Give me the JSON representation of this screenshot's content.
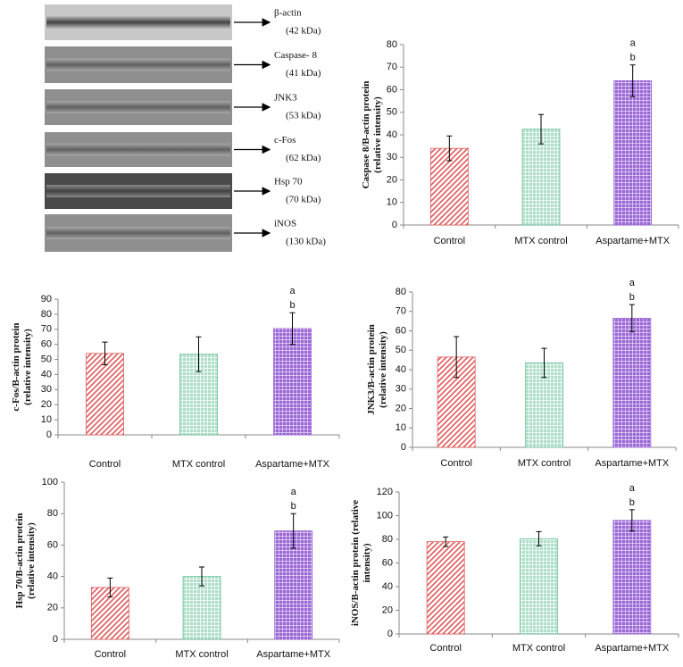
{
  "blot": [
    {
      "name": "β-actin",
      "size": "(42 kDa)"
    },
    {
      "name": "Caspase- 8",
      "size": "(41 kDa)"
    },
    {
      "name": "JNK3",
      "size": "(53 kDa)"
    },
    {
      "name": "c-Fos",
      "size": "(62 kDa)"
    },
    {
      "name": "Hsp 70",
      "size": "(70 kDa)"
    },
    {
      "name": "iNOS",
      "size": "(130 kDa)"
    }
  ],
  "chart_data": [
    {
      "type": "bar",
      "ylabel": [
        "Caspase 8/B-actin protein",
        "(relative intensity)"
      ],
      "categories": [
        "Control",
        "MTX control",
        "Aspartame+MTX"
      ],
      "values": [
        34,
        42.5,
        64
      ],
      "errors": [
        5.5,
        6.5,
        7
      ],
      "colors": [
        "#e05a5a",
        "#6cc29a",
        "#9a66d6"
      ],
      "ylim": [
        0,
        80
      ],
      "yticks": [
        0,
        10,
        20,
        30,
        40,
        50,
        60,
        70,
        80
      ],
      "annotations": [
        {
          "category": "Aspartame+MTX",
          "labels": [
            "a",
            "b"
          ]
        }
      ]
    },
    {
      "type": "bar",
      "ylabel": [
        "c-Fos/B-actin protein",
        "(relative intensity)"
      ],
      "categories": [
        "Control",
        "MTX control",
        "Aspartame+MTX"
      ],
      "values": [
        54,
        53.5,
        70.5
      ],
      "errors": [
        7.5,
        11.5,
        10.5
      ],
      "colors": [
        "#e05a5a",
        "#6cc29a",
        "#9a66d6"
      ],
      "ylim": [
        0,
        90
      ],
      "yticks": [
        0,
        10,
        20,
        30,
        40,
        50,
        60,
        70,
        80,
        90
      ],
      "annotations": [
        {
          "category": "Aspartame+MTX",
          "labels": [
            "a",
            "b"
          ]
        }
      ]
    },
    {
      "type": "bar",
      "ylabel": [
        "JNK3/B-actin protein",
        "(relative intensity)"
      ],
      "categories": [
        "Control",
        "MTX control",
        "Aspartame+MTX"
      ],
      "values": [
        46.5,
        43.5,
        66.5
      ],
      "errors": [
        10.5,
        7.5,
        7
      ],
      "colors": [
        "#e05a5a",
        "#6cc29a",
        "#9a66d6"
      ],
      "ylim": [
        0,
        80
      ],
      "yticks": [
        0,
        10,
        20,
        30,
        40,
        50,
        60,
        70,
        80
      ],
      "annotations": [
        {
          "category": "Aspartame+MTX",
          "labels": [
            "a",
            "b"
          ]
        }
      ]
    },
    {
      "type": "bar",
      "ylabel": [
        "Hsp 70/B-actin protein",
        "(relative intensity)"
      ],
      "categories": [
        "Control",
        "MTX control",
        "Aspartame+MTX"
      ],
      "values": [
        33,
        40,
        69
      ],
      "errors": [
        6,
        6,
        11
      ],
      "colors": [
        "#e05a5a",
        "#6cc29a",
        "#9a66d6"
      ],
      "ylim": [
        0,
        100
      ],
      "yticks": [
        0,
        20,
        40,
        60,
        80,
        100
      ],
      "annotations": [
        {
          "category": "Aspartame+MTX",
          "labels": [
            "a",
            "b"
          ]
        }
      ]
    },
    {
      "type": "bar",
      "ylabel": [
        "iNOS/B-actin protein  (relative",
        "intensity)"
      ],
      "categories": [
        "Control",
        "MTX control",
        "Aspartame+MTX"
      ],
      "values": [
        78,
        80.5,
        96
      ],
      "errors": [
        4,
        6,
        9
      ],
      "colors": [
        "#e05a5a",
        "#6cc29a",
        "#9a66d6"
      ],
      "ylim": [
        0,
        120
      ],
      "yticks": [
        0,
        20,
        40,
        60,
        80,
        100,
        120
      ],
      "annotations": [
        {
          "category": "Aspartame+MTX",
          "labels": [
            "a",
            "b"
          ]
        }
      ]
    }
  ]
}
